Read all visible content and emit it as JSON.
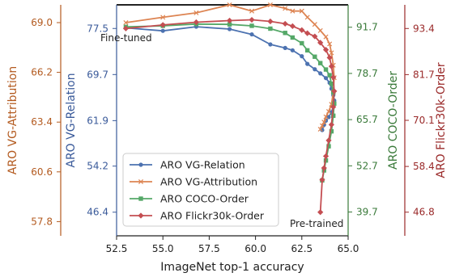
{
  "colors": {
    "relation": "#4c72b0",
    "attribution": "#dd8452",
    "coco": "#55a868",
    "flickr": "#c44e52",
    "axis_attribution": "#b35a1f",
    "axis_relation": "#3a5a9a",
    "axis_coco": "#3a7a3a",
    "axis_flickr": "#9a2a2a"
  },
  "chart_data": {
    "type": "line",
    "xlabel": "ImageNet top-1 accuracy",
    "xlim": [
      52.5,
      65.0
    ],
    "xticks": [
      "52.5",
      "55.0",
      "57.5",
      "60.0",
      "62.5",
      "65.0"
    ],
    "grid": false,
    "legend_position": "lower-left",
    "annotations": {
      "fine_tuned": "Fine-tuned",
      "pre_trained": "Pre-trained"
    },
    "axes": {
      "relation": {
        "label": "ARO VG-Relation",
        "ylim": [
          42.4,
          81.5
        ],
        "ticks": [
          "46.4",
          "54.2",
          "61.9",
          "69.7",
          "77.5"
        ]
      },
      "attribution": {
        "label": "ARO VG-Attribution",
        "ylim": [
          57.0,
          70.0
        ],
        "ticks": [
          "57.8",
          "60.6",
          "63.4",
          "66.2",
          "69.0"
        ]
      },
      "coco": {
        "label": "ARO COCO-Order",
        "ylim": [
          33.0,
          98.0
        ],
        "ticks": [
          "39.7",
          "52.7",
          "65.7",
          "78.7",
          "91.7"
        ]
      },
      "flickr": {
        "label": "ARO Flickr30k-Order",
        "ylim": [
          40.8,
          99.4
        ],
        "ticks": [
          "46.8",
          "58.4",
          "70.1",
          "81.7",
          "93.4"
        ]
      }
    },
    "series": [
      {
        "name": "ARO VG-Relation",
        "key": "relation",
        "marker": "circle",
        "x": [
          53.0,
          55.0,
          56.8,
          58.6,
          59.8,
          60.8,
          61.6,
          62.0,
          62.5,
          62.8,
          63.2,
          63.5,
          63.8,
          64.0,
          64.1,
          64.2,
          64.25,
          64.2,
          64.1,
          63.95,
          63.8,
          63.7,
          63.6
        ],
        "y": [
          77.6,
          77.1,
          77.8,
          77.4,
          76.5,
          74.8,
          74.2,
          73.8,
          72.8,
          71.5,
          70.6,
          69.9,
          69.1,
          68.3,
          67.3,
          66.2,
          65.3,
          64.3,
          63.3,
          62.5,
          61.9,
          61.2,
          60.3
        ]
      },
      {
        "name": "ARO VG-Attribution",
        "key": "attribution",
        "marker": "x",
        "x": [
          53.0,
          55.0,
          56.8,
          58.6,
          59.8,
          60.8,
          61.6,
          62.0,
          62.5,
          62.8,
          63.2,
          63.5,
          63.8,
          64.0,
          64.1,
          64.2,
          64.25,
          64.2,
          64.1,
          63.95,
          63.8,
          63.7,
          63.6,
          63.5
        ],
        "y": [
          69.0,
          69.3,
          69.55,
          70.0,
          69.65,
          70.0,
          69.8,
          69.65,
          69.65,
          69.3,
          68.9,
          68.55,
          68.2,
          67.8,
          67.3,
          66.6,
          65.9,
          65.1,
          64.4,
          64.0,
          63.7,
          63.4,
          63.2,
          63.0
        ]
      },
      {
        "name": "ARO COCO-Order",
        "key": "coco",
        "marker": "square",
        "x": [
          53.0,
          55.0,
          56.8,
          58.6,
          59.8,
          60.8,
          61.6,
          62.0,
          62.5,
          62.8,
          63.2,
          63.5,
          63.8,
          64.0,
          64.1,
          64.2,
          64.25,
          64.2,
          64.1,
          63.95,
          63.8,
          63.7,
          63.6
        ],
        "y": [
          91.8,
          92.1,
          92.6,
          92.5,
          92.1,
          91.3,
          90.1,
          88.8,
          87.2,
          85.2,
          83.4,
          81.6,
          79.8,
          78.2,
          75.8,
          73.4,
          70.2,
          66.8,
          62.4,
          58.2,
          54.2,
          51.4,
          48.6
        ]
      },
      {
        "name": "ARO Flickr30k-Order",
        "key": "flickr",
        "marker": "diamond",
        "x": [
          53.0,
          55.0,
          56.8,
          58.6,
          59.8,
          60.8,
          61.6,
          62.0,
          62.5,
          62.8,
          63.2,
          63.5,
          63.8,
          64.0,
          64.1,
          64.2,
          64.25,
          64.2,
          64.1,
          63.95,
          63.8,
          63.7,
          63.6,
          63.5
        ],
        "y": [
          93.4,
          94.3,
          95.0,
          95.4,
          95.6,
          95.2,
          94.6,
          94.0,
          93.0,
          92.2,
          91.4,
          89.8,
          88.0,
          86.0,
          83.8,
          81.0,
          77.5,
          73.5,
          69.0,
          65.0,
          61.0,
          58.0,
          55.0,
          46.8
        ]
      }
    ]
  }
}
